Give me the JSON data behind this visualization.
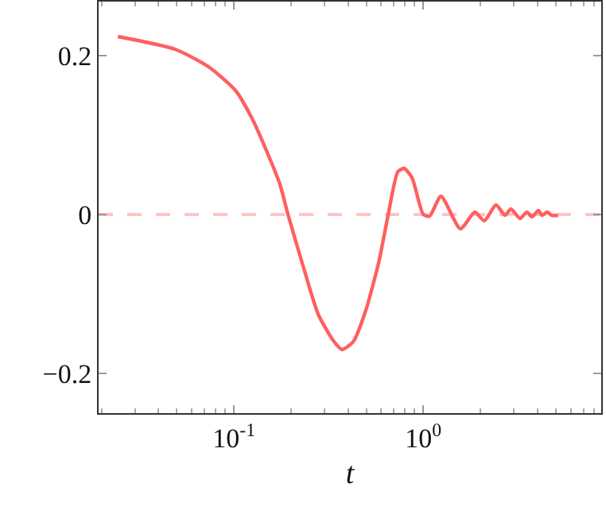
{
  "chart_data": {
    "type": "line",
    "xlabel": "t",
    "log": "x",
    "grid": false,
    "marker": "none",
    "xlim": [
      0.0193,
      8.7
    ],
    "xticks": [
      {
        "value": 0.1,
        "label": "10$^{-1}$"
      },
      {
        "value": 1,
        "label": "10$^{0}$"
      }
    ],
    "ylim": [
      -0.25,
      0.268
    ],
    "yticks": [
      {
        "value": -0.2,
        "label": "−0.2"
      },
      0,
      0.2
    ],
    "ref_lines": [
      {
        "axis": "y",
        "value": 0,
        "color": "#ffc4c4",
        "line_style": "dashed"
      }
    ],
    "series": [
      {
        "color": "#ff5f5f",
        "line_style": "solid",
        "x": [
          0.0244,
          0.0489,
          0.0734,
          0.102,
          0.124,
          0.15,
          0.175,
          0.193,
          0.23,
          0.279,
          0.338,
          0.372,
          0.427,
          0.498,
          0.582,
          0.653,
          0.734,
          0.793,
          0.873,
          1.0,
          1.08,
          1.24,
          1.57,
          1.87,
          2.1,
          2.42,
          2.7,
          2.9,
          3.24,
          3.52,
          3.75,
          4.05,
          4.24,
          4.52,
          4.76,
          5.15
        ],
        "values": [
          0.224,
          0.208,
          0.186,
          0.156,
          0.122,
          0.078,
          0.038,
          0,
          -0.062,
          -0.126,
          -0.16,
          -0.17,
          -0.16,
          -0.12,
          -0.06,
          0,
          0.054,
          0.058,
          0.046,
          0,
          -0.002,
          0.023,
          -0.018,
          0.003,
          -0.008,
          0.012,
          -0.001,
          0.007,
          -0.005,
          0.003,
          -0.003,
          0.005,
          -0.001,
          0.003,
          -0.001,
          -0.001
        ]
      }
    ]
  }
}
